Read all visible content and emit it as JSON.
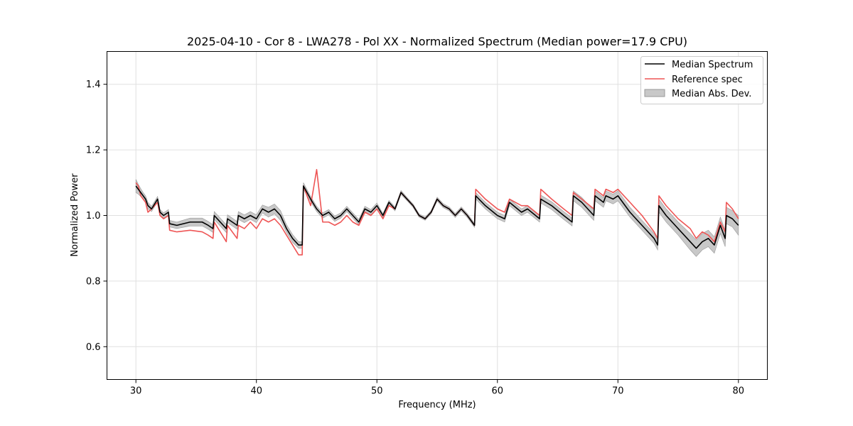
{
  "chart_data": {
    "type": "line",
    "title": "2025-04-10 - Cor 8 - LWA278 - Pol XX - Normalized Spectrum (Median power=17.9 CPU)",
    "xlabel": "Frequency (MHz)",
    "ylabel": "Normalized Power",
    "xlim": [
      27.6,
      82.4
    ],
    "ylim": [
      0.5,
      1.5
    ],
    "xticks": [
      30,
      40,
      50,
      60,
      70,
      80
    ],
    "yticks": [
      0.6,
      0.8,
      1.0,
      1.2,
      1.4
    ],
    "xtick_labels": [
      "30",
      "40",
      "50",
      "60",
      "70",
      "80"
    ],
    "ytick_labels": [
      "0.6",
      "0.8",
      "1.0",
      "1.2",
      "1.4"
    ],
    "grid": true,
    "legend_position": "top-right",
    "legend": [
      "Median Spectrum",
      "Reference spec",
      "Median Abs. Dev."
    ],
    "colors": {
      "median": "#000000",
      "reference": "#ee5555",
      "mad_fill": "#c8c8c8",
      "mad_edge": "#999999",
      "grid": "#e0e0e0"
    },
    "series": [
      {
        "name": "Median Spectrum",
        "x": [
          30.0,
          30.2,
          30.4,
          30.6,
          30.8,
          31.0,
          31.3,
          31.8,
          32.0,
          32.3,
          32.7,
          32.8,
          33.4,
          34.5,
          35.5,
          36.0,
          36.4,
          36.5,
          37.5,
          37.6,
          38.4,
          38.5,
          39.0,
          39.5,
          40.0,
          40.5,
          41.0,
          41.5,
          42.0,
          42.5,
          43.0,
          43.5,
          43.8,
          43.9,
          44.5,
          45.0,
          45.5,
          46.0,
          46.5,
          47.0,
          47.5,
          48.0,
          48.5,
          49.0,
          49.5,
          50.0,
          50.5,
          51.0,
          51.5,
          52.0,
          52.5,
          53.0,
          53.5,
          54.0,
          54.5,
          55.0,
          55.5,
          56.0,
          56.5,
          57.0,
          57.5,
          58.1,
          58.2,
          59.0,
          60.0,
          60.6,
          61.0,
          62.0,
          62.5,
          63.5,
          63.6,
          64.5,
          65.5,
          66.2,
          66.3,
          67.0,
          68.0,
          68.1,
          68.8,
          69.0,
          69.6,
          70.0,
          71.0,
          72.0,
          73.0,
          73.3,
          73.4,
          74.0,
          75.0,
          76.0,
          76.5,
          77.0,
          77.5,
          78.0,
          78.5,
          78.9,
          79.0,
          79.5,
          80.0
        ],
        "values": [
          1.09,
          1.08,
          1.07,
          1.06,
          1.05,
          1.03,
          1.02,
          1.05,
          1.01,
          1.0,
          1.01,
          0.975,
          0.97,
          0.98,
          0.98,
          0.97,
          0.96,
          1.0,
          0.96,
          0.99,
          0.97,
          1.0,
          0.99,
          1.0,
          0.99,
          1.02,
          1.01,
          1.02,
          1.0,
          0.96,
          0.93,
          0.91,
          0.91,
          1.09,
          1.05,
          1.02,
          1.0,
          1.01,
          0.99,
          1.0,
          1.02,
          1.0,
          0.98,
          1.02,
          1.01,
          1.03,
          1.0,
          1.04,
          1.02,
          1.07,
          1.05,
          1.03,
          1.0,
          0.99,
          1.01,
          1.05,
          1.03,
          1.02,
          1.0,
          1.02,
          1.0,
          0.97,
          1.06,
          1.03,
          1.0,
          0.99,
          1.04,
          1.01,
          1.02,
          0.99,
          1.05,
          1.03,
          1.0,
          0.98,
          1.06,
          1.04,
          1.0,
          1.06,
          1.04,
          1.06,
          1.05,
          1.06,
          1.01,
          0.97,
          0.93,
          0.91,
          1.03,
          1.0,
          0.96,
          0.92,
          0.9,
          0.92,
          0.93,
          0.91,
          0.97,
          0.93,
          1.0,
          0.99,
          0.97
        ]
      },
      {
        "name": "Reference spec",
        "x": [
          30.0,
          30.2,
          30.4,
          30.6,
          30.8,
          31.0,
          31.3,
          31.8,
          32.0,
          32.3,
          32.7,
          32.8,
          33.4,
          34.5,
          35.5,
          36.0,
          36.4,
          36.5,
          37.5,
          37.6,
          38.4,
          38.5,
          39.0,
          39.5,
          40.0,
          40.5,
          41.0,
          41.5,
          42.0,
          42.5,
          43.0,
          43.5,
          43.8,
          43.9,
          44.5,
          45.0,
          45.5,
          46.0,
          46.5,
          47.0,
          47.5,
          48.0,
          48.5,
          49.0,
          49.5,
          50.0,
          50.5,
          51.0,
          51.5,
          52.0,
          52.5,
          53.0,
          53.5,
          54.0,
          54.5,
          55.0,
          55.5,
          56.0,
          56.5,
          57.0,
          57.5,
          58.1,
          58.2,
          59.0,
          60.0,
          60.6,
          61.0,
          62.0,
          62.5,
          63.5,
          63.6,
          64.5,
          65.5,
          66.2,
          66.3,
          67.0,
          68.0,
          68.1,
          68.8,
          69.0,
          69.6,
          70.0,
          71.0,
          72.0,
          73.0,
          73.3,
          73.4,
          74.0,
          75.0,
          76.0,
          76.5,
          77.0,
          77.5,
          78.0,
          78.5,
          78.9,
          79.0,
          79.5,
          80.0
        ],
        "values": [
          1.1,
          1.09,
          1.06,
          1.05,
          1.04,
          1.01,
          1.02,
          1.04,
          1.0,
          0.99,
          1.0,
          0.955,
          0.95,
          0.955,
          0.95,
          0.94,
          0.93,
          0.98,
          0.92,
          0.97,
          0.93,
          0.97,
          0.96,
          0.98,
          0.96,
          0.99,
          0.98,
          0.99,
          0.97,
          0.94,
          0.91,
          0.88,
          0.88,
          1.09,
          1.03,
          1.14,
          0.98,
          0.98,
          0.97,
          0.98,
          1.0,
          0.98,
          0.97,
          1.01,
          1.0,
          1.02,
          0.99,
          1.03,
          1.02,
          1.07,
          1.05,
          1.03,
          1.0,
          0.99,
          1.01,
          1.05,
          1.03,
          1.02,
          1.0,
          1.02,
          1.0,
          0.97,
          1.08,
          1.05,
          1.02,
          1.01,
          1.05,
          1.03,
          1.03,
          1.0,
          1.08,
          1.05,
          1.02,
          1.0,
          1.07,
          1.05,
          1.02,
          1.08,
          1.06,
          1.08,
          1.07,
          1.08,
          1.04,
          1.0,
          0.95,
          0.93,
          1.06,
          1.03,
          0.99,
          0.96,
          0.93,
          0.95,
          0.94,
          0.92,
          0.98,
          0.95,
          1.04,
          1.02,
          0.99
        ]
      },
      {
        "name": "Median Abs. Dev.",
        "type": "band",
        "x": [
          30.0,
          30.2,
          30.4,
          30.6,
          30.8,
          31.0,
          31.3,
          31.8,
          32.0,
          32.3,
          32.7,
          32.8,
          33.4,
          34.5,
          35.5,
          36.0,
          36.4,
          36.5,
          37.5,
          37.6,
          38.4,
          38.5,
          39.0,
          39.5,
          40.0,
          40.5,
          41.0,
          41.5,
          42.0,
          42.5,
          43.0,
          43.5,
          43.8,
          43.9,
          44.5,
          45.0,
          45.5,
          46.0,
          46.5,
          47.0,
          47.5,
          48.0,
          48.5,
          49.0,
          49.5,
          50.0,
          50.5,
          51.0,
          51.5,
          52.0,
          52.5,
          53.0,
          53.5,
          54.0,
          54.5,
          55.0,
          55.5,
          56.0,
          56.5,
          57.0,
          57.5,
          58.1,
          58.2,
          59.0,
          60.0,
          60.6,
          61.0,
          62.0,
          62.5,
          63.5,
          63.6,
          64.5,
          65.5,
          66.2,
          66.3,
          67.0,
          68.0,
          68.1,
          68.8,
          69.0,
          69.6,
          70.0,
          71.0,
          72.0,
          73.0,
          73.3,
          73.4,
          74.0,
          75.0,
          76.0,
          76.5,
          77.0,
          77.5,
          78.0,
          78.5,
          78.9,
          79.0,
          79.5,
          80.0
        ],
        "halfwidth": [
          0.02,
          0.015,
          0.012,
          0.01,
          0.01,
          0.01,
          0.008,
          0.008,
          0.008,
          0.008,
          0.008,
          0.01,
          0.01,
          0.012,
          0.012,
          0.012,
          0.012,
          0.012,
          0.012,
          0.012,
          0.012,
          0.012,
          0.012,
          0.012,
          0.012,
          0.012,
          0.015,
          0.015,
          0.015,
          0.012,
          0.012,
          0.01,
          0.01,
          0.01,
          0.008,
          0.008,
          0.008,
          0.008,
          0.008,
          0.008,
          0.008,
          0.008,
          0.008,
          0.008,
          0.008,
          0.008,
          0.006,
          0.006,
          0.006,
          0.006,
          0.005,
          0.005,
          0.005,
          0.005,
          0.005,
          0.006,
          0.006,
          0.006,
          0.006,
          0.006,
          0.006,
          0.006,
          0.01,
          0.01,
          0.01,
          0.01,
          0.01,
          0.01,
          0.01,
          0.01,
          0.012,
          0.012,
          0.012,
          0.012,
          0.015,
          0.015,
          0.015,
          0.015,
          0.015,
          0.015,
          0.015,
          0.015,
          0.015,
          0.015,
          0.015,
          0.015,
          0.02,
          0.02,
          0.02,
          0.025,
          0.025,
          0.025,
          0.025,
          0.025,
          0.025,
          0.025,
          0.025,
          0.025,
          0.03
        ]
      }
    ]
  }
}
